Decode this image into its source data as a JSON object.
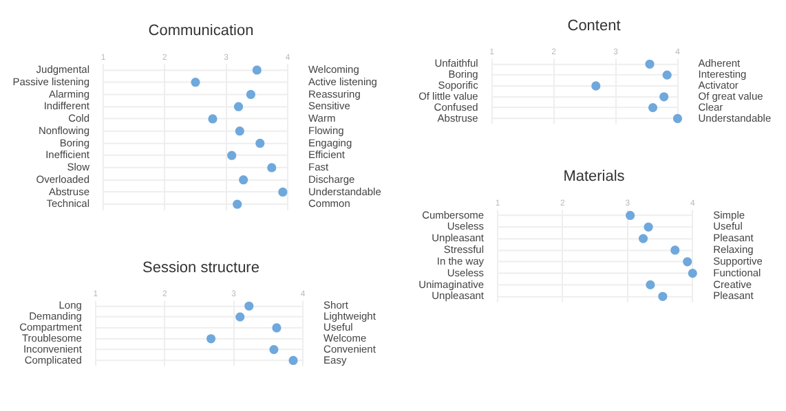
{
  "chart_data": [
    {
      "type": "scatter",
      "orientation": "horizontal",
      "title": "Communication",
      "categories": [
        "Judgmental",
        "Passive listening",
        "Alarming",
        "Indifferent",
        "Cold",
        "Nonflowing",
        "Boring",
        "Inefficient",
        "Slow",
        "Overloaded",
        "Abstruse",
        "Technical"
      ],
      "y2_categories": [
        "Welcoming",
        "Active listening",
        "Reassuring",
        "Sensitive",
        "Warm",
        "Flowing",
        "Engaging",
        "Efficient",
        "Fast",
        "Discharge",
        "Understandable",
        "Common"
      ],
      "values": [
        3.5,
        2.5,
        3.4,
        3.2,
        2.78,
        3.22,
        3.55,
        3.09,
        3.74,
        3.28,
        3.92,
        3.18
      ],
      "color": "#6fa8dc",
      "xlim": [
        1,
        4
      ],
      "xticks": [
        1,
        2,
        3,
        4
      ],
      "grid": true,
      "marker": "circle"
    },
    {
      "type": "scatter",
      "orientation": "horizontal",
      "title": "Content",
      "categories": [
        "Unfaithful",
        "Boring",
        "Soporific",
        "Of little value",
        "Confused",
        "Abstruse"
      ],
      "y2_categories": [
        "Adherent",
        "Interesting",
        "Activator",
        "Of great value",
        "Clear",
        "Understandable"
      ],
      "values": [
        3.55,
        3.83,
        2.68,
        3.78,
        3.6,
        4.0
      ],
      "color": "#6fa8dc",
      "xlim": [
        1,
        4
      ],
      "xticks": [
        1,
        2,
        3,
        4
      ],
      "grid": true,
      "marker": "circle"
    },
    {
      "type": "scatter",
      "orientation": "horizontal",
      "title": "Session structure",
      "categories": [
        "Long",
        "Demanding",
        "Compartment",
        "Troublesome",
        "Inconvenient",
        "Complicated"
      ],
      "y2_categories": [
        "Short",
        "Lightweight",
        "Useful",
        "Welcome",
        "Convenient",
        "Easy"
      ],
      "values": [
        3.22,
        3.09,
        3.62,
        2.67,
        3.58,
        3.86
      ],
      "color": "#6fa8dc",
      "xlim": [
        1,
        4
      ],
      "xticks": [
        1,
        2,
        3,
        4
      ],
      "grid": true,
      "marker": "circle"
    },
    {
      "type": "scatter",
      "orientation": "horizontal",
      "title": "Materials",
      "categories": [
        "Cumbersome",
        "Useless",
        "Unpleasant",
        "Stressful",
        "In the way",
        "Useless",
        "Unimaginative",
        "Unpleasant"
      ],
      "y2_categories": [
        "Simple",
        "Useful",
        "Pleasant",
        "Relaxing",
        "Supportive",
        "Functional",
        "Creative",
        "Pleasant"
      ],
      "values": [
        3.04,
        3.32,
        3.24,
        3.73,
        3.92,
        4.0,
        3.35,
        3.54
      ],
      "color": "#6fa8dc",
      "xlim": [
        1,
        4
      ],
      "xticks": [
        1,
        2,
        3,
        4
      ],
      "grid": true,
      "marker": "circle"
    }
  ]
}
